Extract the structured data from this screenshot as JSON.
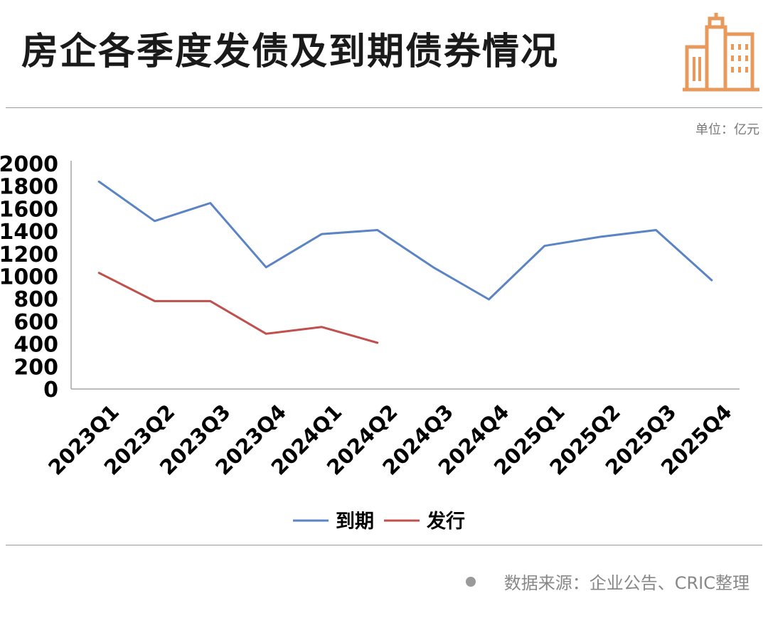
{
  "header": {
    "title": "房企各季度发债及到期债券情况",
    "logo_icon": "building-logo-icon"
  },
  "unit_label": "单位：亿元",
  "footer": {
    "source": "数据来源：企业公告、CRIC整理"
  },
  "colors": {
    "maturity": "#5b84c4",
    "issuance": "#c0504d",
    "logo": "#e89a5c",
    "axis": "#a6a6a6"
  },
  "chart_data": {
    "type": "line",
    "categories": [
      "2023Q1",
      "2023Q2",
      "2023Q3",
      "2023Q4",
      "2024Q1",
      "2024Q2",
      "2024Q3",
      "2024Q4",
      "2025Q1",
      "2025Q2",
      "2025Q3",
      "2025Q4"
    ],
    "series": [
      {
        "name": "到期",
        "values": [
          1840,
          1490,
          1650,
          1080,
          1375,
          1410,
          1080,
          795,
          1270,
          1350,
          1410,
          965
        ]
      },
      {
        "name": "发行",
        "values": [
          1030,
          780,
          780,
          490,
          550,
          410,
          null,
          null,
          null,
          null,
          null,
          null
        ]
      }
    ],
    "y_ticks": [
      0,
      200,
      400,
      600,
      800,
      1000,
      1200,
      1400,
      1600,
      1800,
      2000
    ],
    "ylim": [
      0,
      2000
    ],
    "grid": false,
    "legend_position": "bottom-center"
  }
}
